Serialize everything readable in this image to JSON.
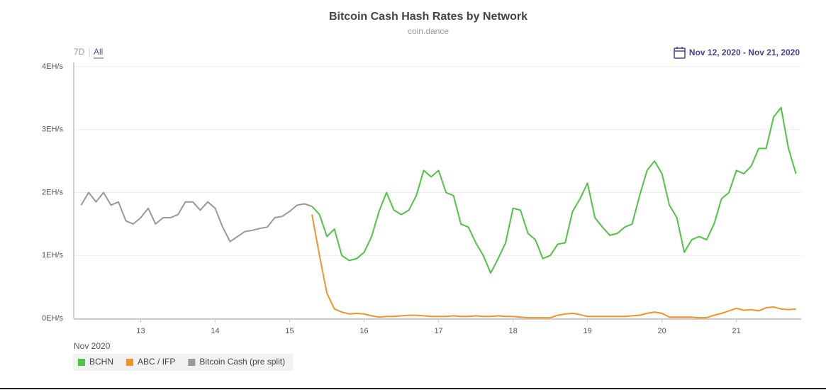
{
  "chart_data": {
    "type": "line",
    "title": "Bitcoin Cash Hash Rates by Network",
    "subtitle": "coin.dance",
    "range_buttons": [
      "7D",
      "All"
    ],
    "date_range": "Nov 12, 2020 - Nov 21, 2020",
    "x_label": "Nov 2020",
    "x": [
      12.2,
      12.3,
      12.4,
      12.5,
      12.6,
      12.7,
      12.8,
      12.9,
      13.0,
      13.1,
      13.2,
      13.3,
      13.4,
      13.5,
      13.6,
      13.7,
      13.8,
      13.9,
      14.0,
      14.1,
      14.2,
      14.3,
      14.4,
      14.5,
      14.6,
      14.7,
      14.8,
      14.9,
      15.0,
      15.1,
      15.2,
      15.3,
      15.4,
      15.5,
      15.6,
      15.7,
      15.8,
      15.9,
      16.0,
      16.1,
      16.2,
      16.3,
      16.4,
      16.5,
      16.6,
      16.7,
      16.8,
      16.9,
      17.0,
      17.1,
      17.2,
      17.3,
      17.4,
      17.5,
      17.6,
      17.7,
      17.8,
      17.9,
      18.0,
      18.1,
      18.2,
      18.3,
      18.4,
      18.5,
      18.6,
      18.7,
      18.8,
      18.9,
      19.0,
      19.1,
      19.2,
      19.3,
      19.4,
      19.5,
      19.6,
      19.7,
      19.8,
      19.9,
      20.0,
      20.1,
      20.2,
      20.3,
      20.4,
      20.5,
      20.6,
      20.7,
      20.8,
      20.9,
      21.0,
      21.1,
      21.2,
      21.3,
      21.4,
      21.5,
      21.6,
      21.7,
      21.8
    ],
    "series": [
      {
        "name": "BCHN",
        "color": "#4fc443",
        "values": [
          null,
          null,
          null,
          null,
          null,
          null,
          null,
          null,
          null,
          null,
          null,
          null,
          null,
          null,
          null,
          null,
          null,
          null,
          null,
          null,
          null,
          null,
          null,
          null,
          null,
          null,
          null,
          null,
          null,
          null,
          null,
          1.78,
          1.65,
          1.3,
          1.42,
          1.0,
          0.92,
          0.95,
          1.05,
          1.3,
          1.7,
          2.0,
          1.72,
          1.65,
          1.72,
          1.95,
          2.35,
          2.25,
          2.35,
          2.0,
          1.95,
          1.5,
          1.45,
          1.2,
          1.0,
          0.72,
          0.95,
          1.2,
          1.75,
          1.72,
          1.35,
          1.25,
          0.95,
          1.0,
          1.18,
          1.2,
          1.7,
          1.9,
          2.15,
          1.6,
          1.45,
          1.32,
          1.35,
          1.45,
          1.5,
          1.95,
          2.35,
          2.5,
          2.3,
          1.8,
          1.6,
          1.05,
          1.25,
          1.3,
          1.25,
          1.5,
          1.9,
          2.0,
          2.35,
          2.3,
          2.42,
          2.7,
          2.7,
          3.2,
          3.35,
          2.7,
          2.3
        ]
      },
      {
        "name": "ABC / IFP",
        "color": "#f0932b",
        "values": [
          null,
          null,
          null,
          null,
          null,
          null,
          null,
          null,
          null,
          null,
          null,
          null,
          null,
          null,
          null,
          null,
          null,
          null,
          null,
          null,
          null,
          null,
          null,
          null,
          null,
          null,
          null,
          null,
          null,
          null,
          null,
          1.65,
          1.0,
          0.4,
          0.15,
          0.1,
          0.07,
          0.08,
          0.07,
          0.04,
          0.02,
          0.03,
          0.03,
          0.04,
          0.05,
          0.05,
          0.04,
          0.03,
          0.03,
          0.03,
          0.04,
          0.03,
          0.03,
          0.04,
          0.03,
          0.03,
          0.04,
          0.03,
          0.03,
          0.02,
          0.01,
          0.01,
          0.01,
          0.01,
          0.05,
          0.07,
          0.08,
          0.06,
          0.03,
          0.03,
          0.03,
          0.03,
          0.03,
          0.03,
          0.04,
          0.05,
          0.08,
          0.1,
          0.08,
          0.02,
          0.02,
          0.02,
          0.02,
          0.01,
          0.01,
          0.05,
          0.08,
          0.12,
          0.16,
          0.13,
          0.14,
          0.12,
          0.17,
          0.18,
          0.15,
          0.14,
          0.15
        ]
      },
      {
        "name": "Bitcoin Cash (pre split)",
        "color": "#999999",
        "values": [
          1.8,
          2.0,
          1.85,
          2.0,
          1.8,
          1.85,
          1.55,
          1.5,
          1.6,
          1.75,
          1.5,
          1.6,
          1.6,
          1.65,
          1.85,
          1.85,
          1.72,
          1.85,
          1.75,
          1.45,
          1.22,
          1.3,
          1.38,
          1.4,
          1.43,
          1.45,
          1.6,
          1.62,
          1.7,
          1.8,
          1.82,
          1.78,
          null,
          null,
          null,
          null,
          null,
          null,
          null,
          null,
          null,
          null,
          null,
          null,
          null,
          null,
          null,
          null,
          null,
          null,
          null,
          null,
          null,
          null,
          null,
          null,
          null,
          null,
          null,
          null,
          null,
          null,
          null,
          null,
          null,
          null,
          null,
          null,
          null,
          null,
          null,
          null,
          null,
          null,
          null,
          null,
          null,
          null,
          null,
          null,
          null,
          null,
          null,
          null,
          null,
          null,
          null,
          null,
          null,
          null,
          null,
          null,
          null,
          null,
          null,
          null,
          null
        ]
      }
    ],
    "xlim": [
      12.1,
      21.87
    ],
    "xticks": [
      13,
      14,
      15,
      16,
      17,
      18,
      19,
      20,
      21
    ],
    "ylim": [
      0,
      4
    ],
    "yticks": [
      {
        "value": 0,
        "label": "0EH/s"
      },
      {
        "value": 1,
        "label": "1EH/s"
      },
      {
        "value": 2,
        "label": "2EH/s"
      },
      {
        "value": 3,
        "label": "3EH/s"
      },
      {
        "value": 4,
        "label": "4EH/s"
      }
    ],
    "grid": true
  }
}
